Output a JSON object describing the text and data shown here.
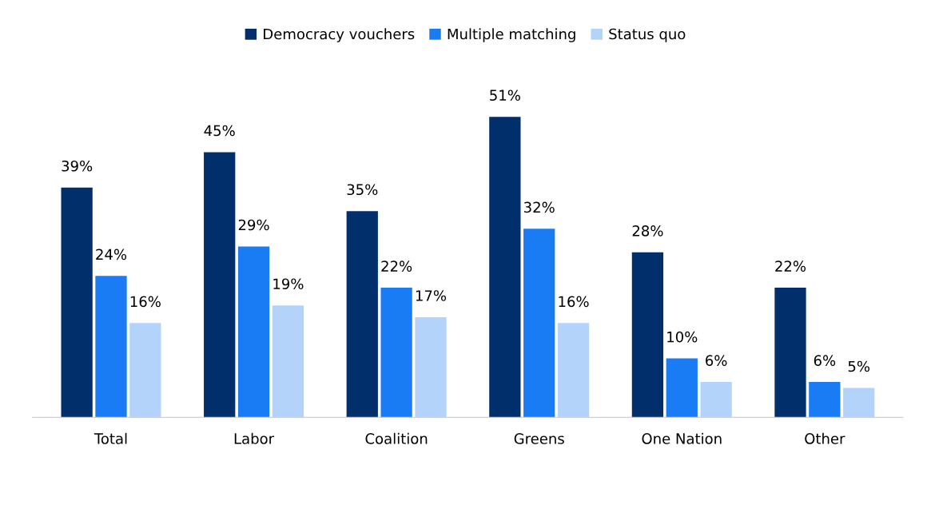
{
  "chart_data": {
    "type": "bar",
    "categories": [
      "Total",
      "Labor",
      "Coalition",
      "Greens",
      "One Nation",
      "Other"
    ],
    "series": [
      {
        "name": "Democracy vouchers",
        "color": "#002f6c",
        "values": [
          39,
          45,
          35,
          51,
          28,
          22
        ],
        "value_labels": [
          "39%",
          "45%",
          "35%",
          "51%",
          "28%",
          "22%"
        ]
      },
      {
        "name": "Multiple matching",
        "color": "#1a7cf5",
        "values": [
          24,
          29,
          22,
          32,
          10,
          6
        ],
        "value_labels": [
          "24%",
          "29%",
          "22%",
          "32%",
          "10%",
          "6%"
        ]
      },
      {
        "name": "Status quo",
        "color": "#b4d3fb",
        "values": [
          16,
          19,
          17,
          16,
          6,
          5
        ],
        "value_labels": [
          "16%",
          "19%",
          "17%",
          "16%",
          "6%",
          "5%"
        ]
      }
    ],
    "legend": "top",
    "grid": false,
    "tick_labels": "x"
  }
}
